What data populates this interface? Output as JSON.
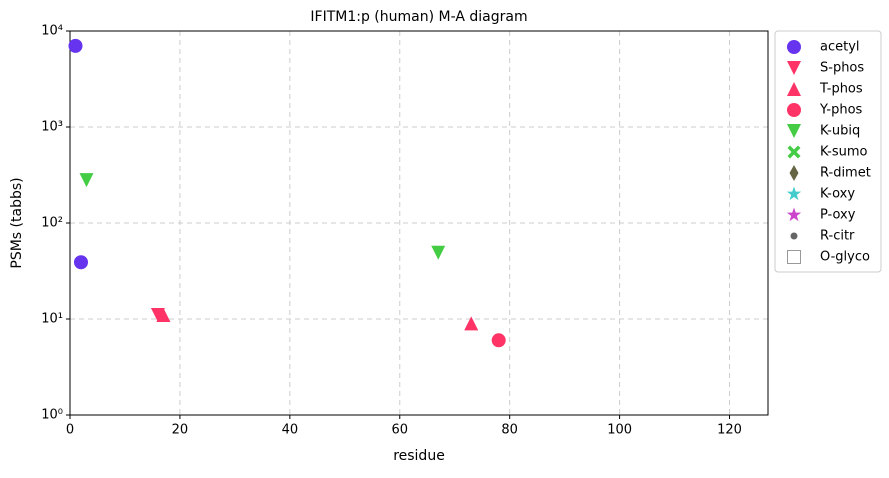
{
  "chart_data": {
    "type": "scatter",
    "title": "IFITM1:p (human) M-A diagram",
    "x_label": "residue",
    "y_label": "PSMs (tabbs)",
    "xlim": [
      0,
      127
    ],
    "xticks": [
      0,
      20,
      40,
      60,
      80,
      100,
      120
    ],
    "ylim": [
      1,
      10000
    ],
    "log_y": true,
    "yticks": [
      {
        "value": 1,
        "label": "10⁰"
      },
      {
        "value": 10,
        "label": "10¹"
      },
      {
        "value": 100,
        "label": "10²"
      },
      {
        "value": 1000,
        "label": "10³"
      },
      {
        "value": 10000,
        "label": "10⁴"
      }
    ],
    "grid": true,
    "legend": "outside-right",
    "series": [
      {
        "name": "acetyl",
        "color": "#6633ee",
        "marker": "circle",
        "x": [
          1,
          2
        ],
        "values": [
          7000,
          39
        ]
      },
      {
        "name": "S-phos",
        "color": "#ff3366",
        "marker": "triangle-down",
        "x": [
          16
        ],
        "values": [
          11
        ]
      },
      {
        "name": "T-phos",
        "color": "#ff3366",
        "marker": "triangle-up",
        "x": [
          17,
          73
        ],
        "values": [
          11,
          9
        ]
      },
      {
        "name": "Y-phos",
        "color": "#ff3366",
        "marker": "circle",
        "x": [
          78
        ],
        "values": [
          6
        ]
      },
      {
        "name": "K-ubiq",
        "color": "#44cc44",
        "marker": "triangle-down",
        "x": [
          3,
          67
        ],
        "values": [
          280,
          49
        ]
      },
      {
        "name": "K-sumo",
        "color": "#44cc44",
        "marker": "x",
        "x": [],
        "values": []
      },
      {
        "name": "R-dimet",
        "color": "#666644",
        "marker": "diamond",
        "x": [],
        "values": []
      },
      {
        "name": "K-oxy",
        "color": "#44cccc",
        "marker": "star",
        "x": [],
        "values": []
      },
      {
        "name": "P-oxy",
        "color": "#cc44cc",
        "marker": "star",
        "x": [],
        "values": []
      },
      {
        "name": "R-citr",
        "color": "#666666",
        "marker": "dot",
        "x": [],
        "values": []
      },
      {
        "name": "O-glyco",
        "color": "#999999",
        "marker": "square-open",
        "x": [],
        "values": []
      }
    ]
  }
}
